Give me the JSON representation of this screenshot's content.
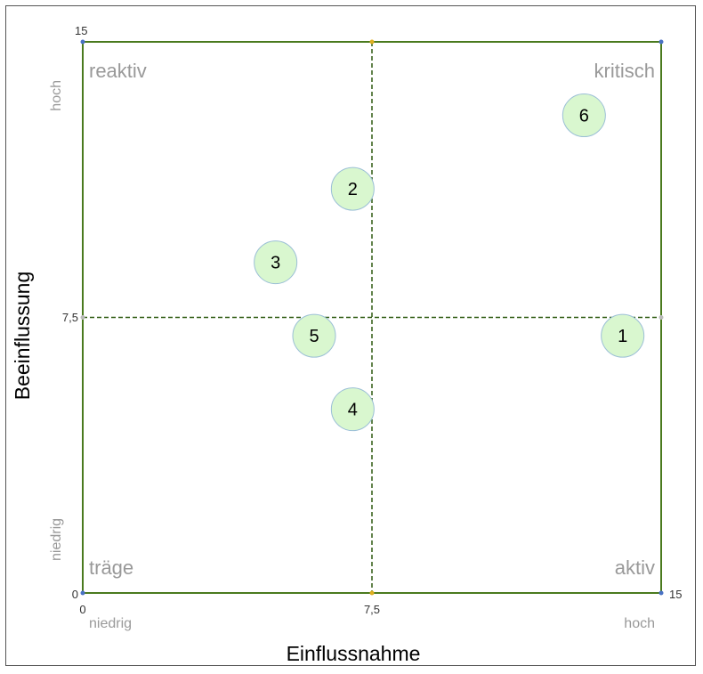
{
  "chart_data": {
    "type": "scatter",
    "xlabel": "Einflussnahme",
    "ylabel": "Beeinflussung",
    "xlim": [
      0,
      15
    ],
    "ylim": [
      0,
      15
    ],
    "x_ticks": [
      "0",
      "7,5",
      "15"
    ],
    "y_ticks": [
      "0",
      "7,5",
      "15"
    ],
    "x_range_labels": {
      "low": "niedrig",
      "high": "hoch"
    },
    "y_range_labels": {
      "low": "niedrig",
      "high": "hoch"
    },
    "quadrants": {
      "top_left": "reaktiv",
      "top_right": "kritisch",
      "bottom_left": "träge",
      "bottom_right": "aktiv"
    },
    "midlines": {
      "x": 7.5,
      "y": 7.5
    },
    "points": [
      {
        "label": "1",
        "x": 14,
        "y": 7
      },
      {
        "label": "2",
        "x": 7,
        "y": 11
      },
      {
        "label": "3",
        "x": 5,
        "y": 9
      },
      {
        "label": "4",
        "x": 7,
        "y": 5
      },
      {
        "label": "5",
        "x": 6,
        "y": 7
      },
      {
        "label": "6",
        "x": 13,
        "y": 13
      }
    ],
    "colors": {
      "frame": "#4a7a1e",
      "midline": "#2e5a10",
      "point_fill": "#d9f7cf",
      "point_stroke": "#9bbfd6",
      "quadrant_text": "#999999",
      "axis_text": "#333333",
      "corner_dot": "#4a72c4",
      "mid_dot": "#e0b020"
    }
  }
}
